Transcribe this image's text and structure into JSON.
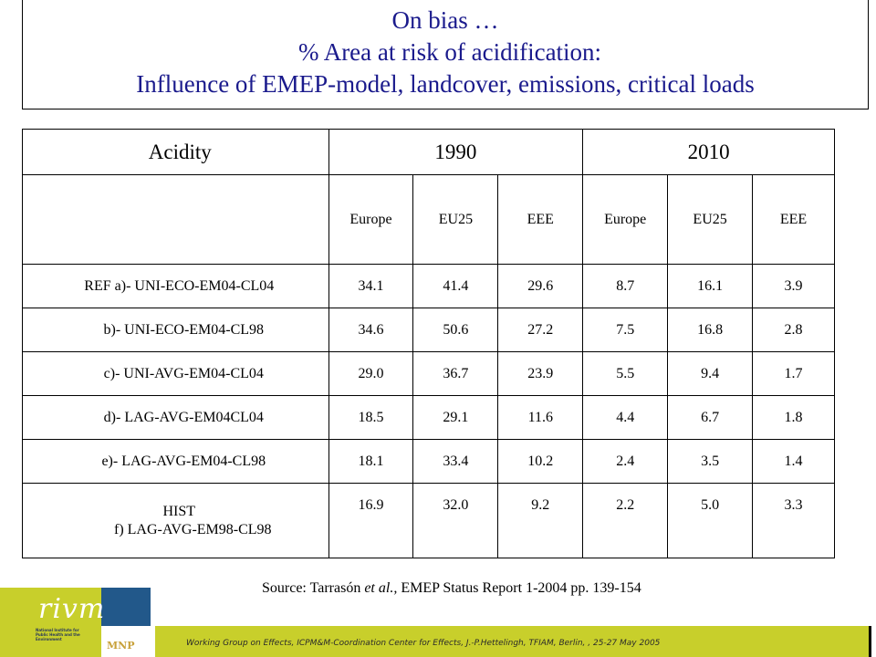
{
  "title": {
    "line1": "On bias …",
    "line2": "% Area at risk of acidification:",
    "line3": "Influence of EMEP-model, landcover, emissions, critical loads"
  },
  "table": {
    "corner": "Acidity",
    "years": [
      "1990",
      "2010"
    ],
    "regions": [
      "Europe",
      "EU25",
      "EEE",
      "Europe",
      "EU25",
      "EEE"
    ],
    "rows": [
      {
        "label": "REF a)- UNI-ECO-EM04-CL04",
        "values": [
          "34.1",
          "41.4",
          "29.6",
          "8.7",
          "16.1",
          "3.9"
        ]
      },
      {
        "label": "b)- UNI-ECO-EM04-CL98",
        "values": [
          "34.6",
          "50.6",
          "27.2",
          "7.5",
          "16.8",
          "2.8"
        ]
      },
      {
        "label": "c)- UNI-AVG-EM04-CL04",
        "values": [
          "29.0",
          "36.7",
          "23.9",
          "5.5",
          "9.4",
          "1.7"
        ]
      },
      {
        "label": "d)- LAG-AVG-EM04CL04",
        "values": [
          "18.5",
          "29.1",
          "11.6",
          "4.4",
          "6.7",
          "1.8"
        ]
      },
      {
        "label": "e)- LAG-AVG-EM04-CL98",
        "values": [
          "18.1",
          "33.4",
          "10.2",
          "2.4",
          "3.5",
          "1.4"
        ]
      }
    ],
    "hist": {
      "label_line1": "HIST",
      "label_line2": "f) LAG-AVG-EM98-CL98",
      "values": [
        "16.9",
        "32.0",
        "9.2",
        "2.2",
        "5.0",
        "3.3"
      ]
    }
  },
  "source": {
    "prefix": "Source: Tarrasón ",
    "italic": "et al.,",
    "suffix": " EMEP Status Report 1-2004 pp. 139-154"
  },
  "footer": {
    "text": "Working Group on Effects, ICPM&M-Coordination Center for Effects, J.-P.Hettelingh, TFIAM, Berlin, , 25-27 May 2005"
  },
  "logo": {
    "word": "rivm",
    "small_text": "National Institute for Public Health and the Environment",
    "mnp": "MNP"
  },
  "colors": {
    "title": "#1a1a8c",
    "footer_bar": "#c8cf2b",
    "logo_blue": "#22588a",
    "mnp": "#c8a13a"
  }
}
